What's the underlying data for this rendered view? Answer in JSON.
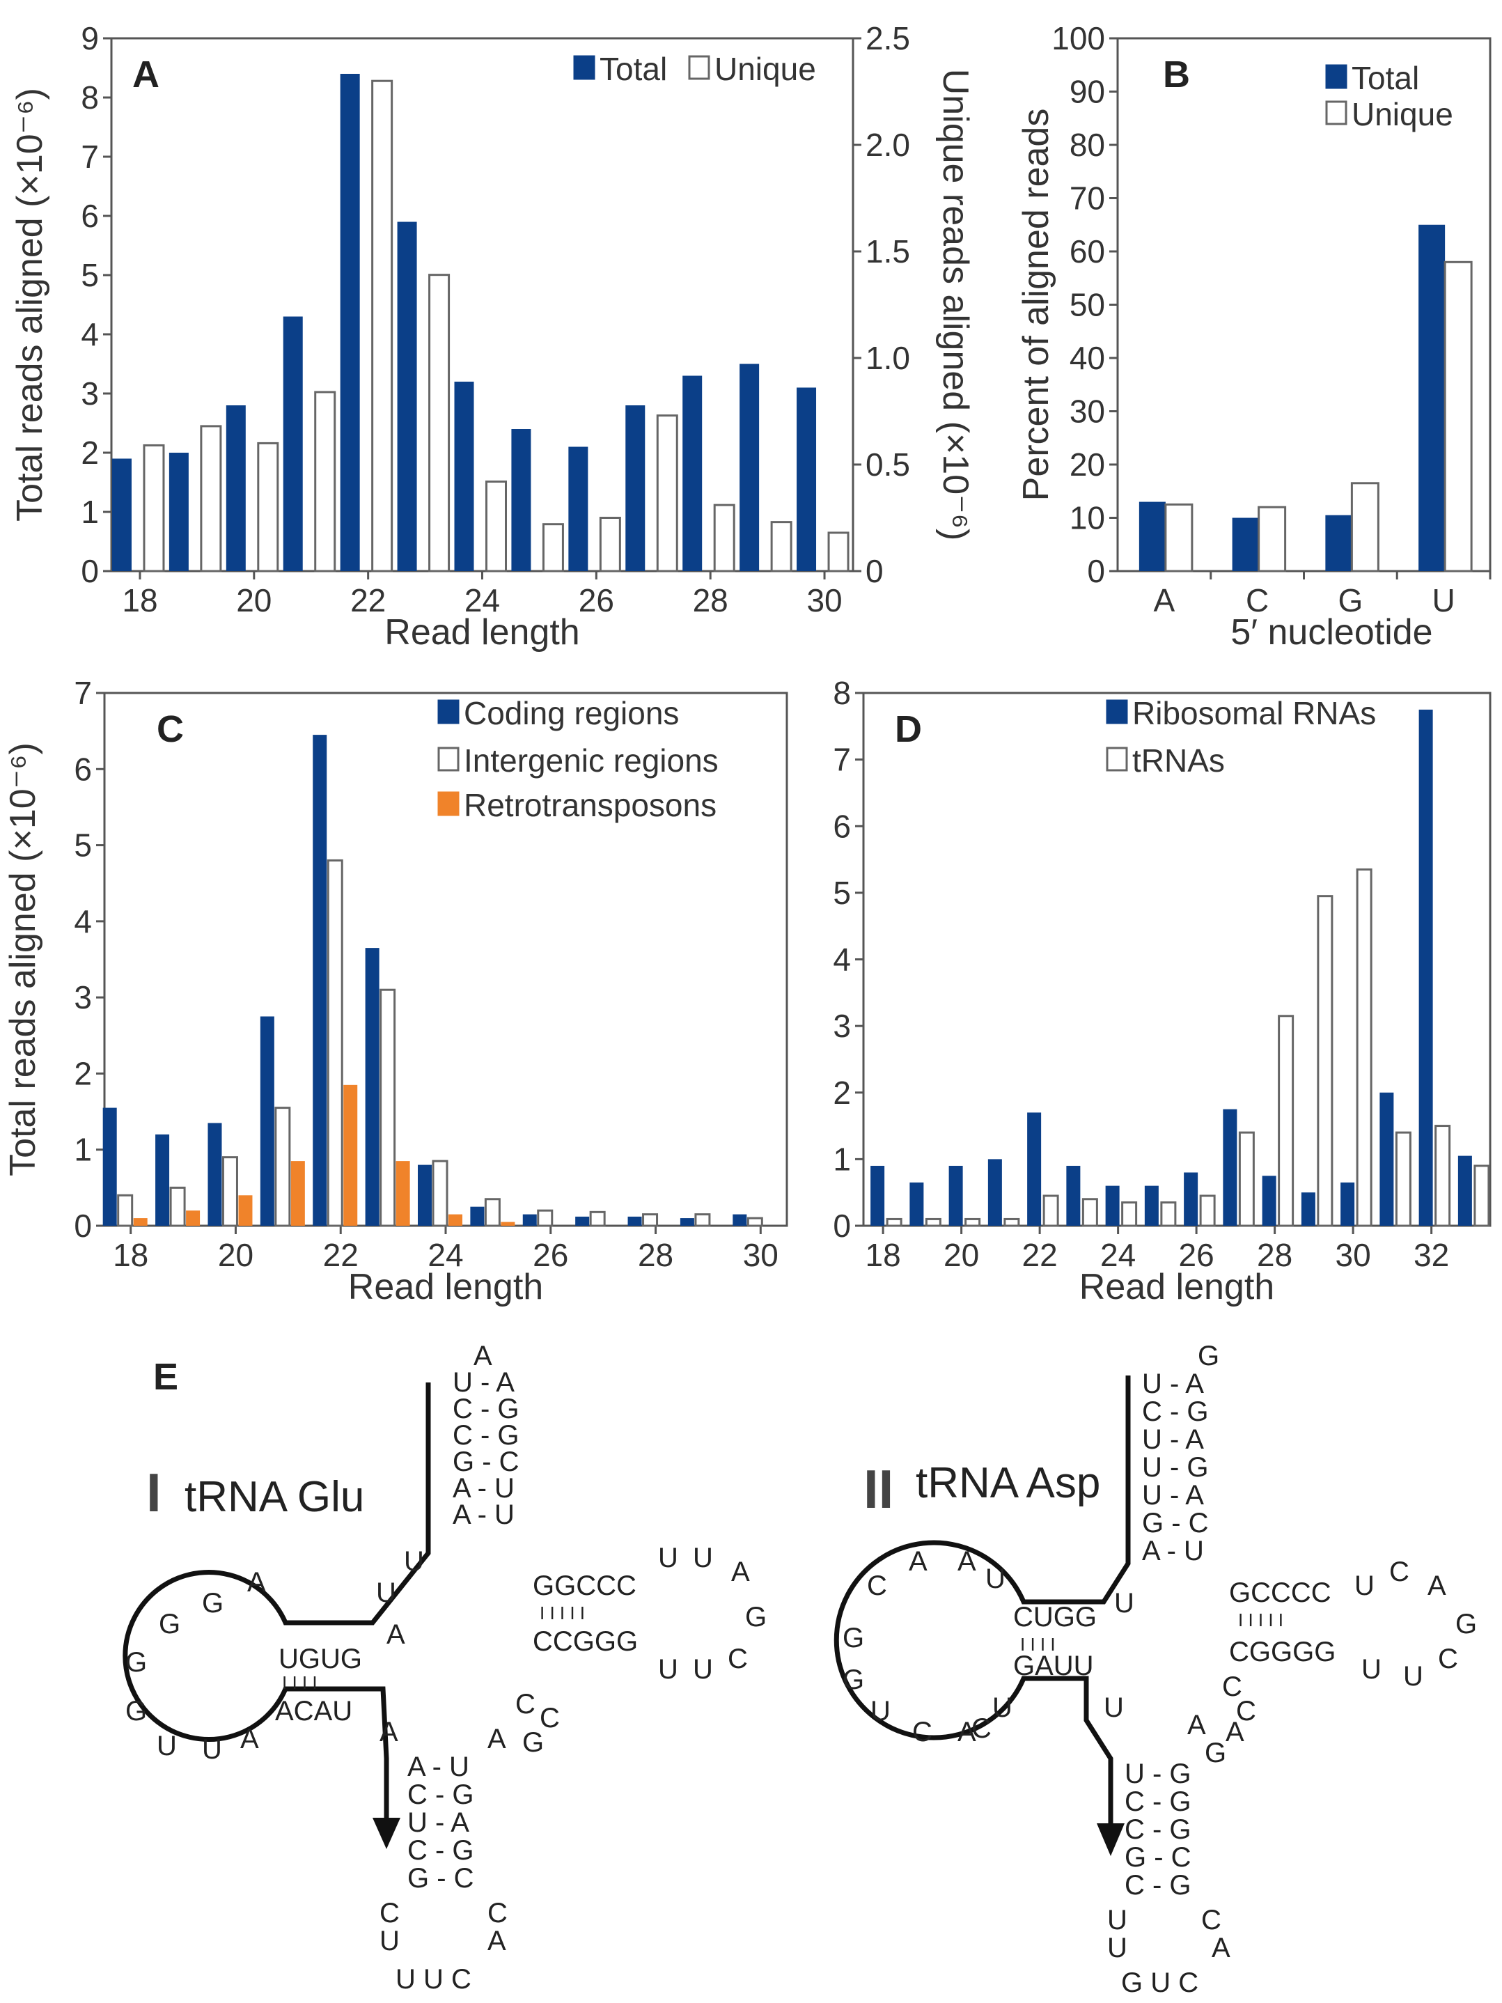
{
  "colors": {
    "total": "#0b3f88",
    "unique": "#ffffff",
    "retro": "#f0832a",
    "axis": "#555555"
  },
  "chart_data": [
    {
      "panel": "A",
      "type": "bar",
      "xlabel": "Read length",
      "ylabel": "Total reads aligned (×10⁻⁶)",
      "ylabel_right": "Unique reads aligned (×10⁻⁶)",
      "categories": [
        18,
        19,
        20,
        21,
        22,
        23,
        24,
        25,
        26,
        27,
        28,
        29,
        30
      ],
      "tick_labels": [
        "18",
        "20",
        "22",
        "24",
        "26",
        "28",
        "30"
      ],
      "ylim": [
        0,
        9
      ],
      "yticks": [
        "0",
        "1",
        "2",
        "3",
        "4",
        "5",
        "6",
        "7",
        "8",
        "9"
      ],
      "ylim_right": [
        0,
        2.5
      ],
      "yticks_right": [
        "0",
        "0.5",
        "1.0",
        "1.5",
        "2.0",
        "2.5"
      ],
      "legend": [
        "Total",
        "Unique"
      ],
      "series": [
        {
          "name": "Total",
          "axis": "left",
          "values": [
            1.9,
            2.0,
            2.8,
            4.3,
            8.4,
            5.9,
            3.2,
            2.4,
            2.1,
            2.8,
            3.3,
            3.5,
            3.1
          ]
        },
        {
          "name": "Unique",
          "axis": "right",
          "values": [
            0.59,
            0.68,
            0.6,
            0.84,
            2.3,
            1.39,
            0.42,
            0.22,
            0.25,
            0.73,
            0.31,
            0.23,
            0.18
          ]
        }
      ]
    },
    {
      "panel": "B",
      "type": "bar",
      "xlabel": "5′ nucleotide",
      "ylabel": "Percent of aligned reads",
      "categories": [
        "A",
        "C",
        "G",
        "U"
      ],
      "tick_labels": [
        "A",
        "C",
        "G",
        "U"
      ],
      "ylim": [
        0,
        100
      ],
      "yticks": [
        "0",
        "10",
        "20",
        "30",
        "40",
        "50",
        "60",
        "70",
        "80",
        "90",
        "100"
      ],
      "legend": [
        "Total",
        "Unique"
      ],
      "series": [
        {
          "name": "Total",
          "values": [
            13,
            10,
            10.5,
            65
          ]
        },
        {
          "name": "Unique",
          "values": [
            12.5,
            12,
            16.5,
            58
          ]
        }
      ]
    },
    {
      "panel": "C",
      "type": "bar",
      "xlabel": "Read length",
      "ylabel": "Total reads aligned (×10⁻⁶)",
      "categories": [
        18,
        19,
        20,
        21,
        22,
        23,
        24,
        25,
        26,
        27,
        28,
        29,
        30
      ],
      "tick_labels": [
        "18",
        "20",
        "22",
        "24",
        "26",
        "28",
        "30"
      ],
      "ylim": [
        0,
        7
      ],
      "yticks": [
        "0",
        "1",
        "2",
        "3",
        "4",
        "5",
        "6",
        "7"
      ],
      "legend": [
        "Coding regions",
        "Intergenic regions",
        "Retrotransposons"
      ],
      "series": [
        {
          "name": "Coding regions",
          "values": [
            1.55,
            1.2,
            1.35,
            2.75,
            6.45,
            3.65,
            0.8,
            0.25,
            0.15,
            0.12,
            0.12,
            0.1,
            0.15
          ]
        },
        {
          "name": "Intergenic regions",
          "values": [
            0.4,
            0.5,
            0.9,
            1.55,
            4.8,
            3.1,
            0.85,
            0.35,
            0.2,
            0.18,
            0.15,
            0.15,
            0.1
          ]
        },
        {
          "name": "Retrotransposons",
          "values": [
            0.1,
            0.2,
            0.4,
            0.85,
            1.85,
            0.85,
            0.15,
            0.05,
            0,
            0,
            0,
            0,
            0
          ]
        }
      ]
    },
    {
      "panel": "D",
      "type": "bar",
      "xlabel": "Read length",
      "ylabel": "",
      "categories": [
        18,
        19,
        20,
        21,
        22,
        23,
        24,
        25,
        26,
        27,
        28,
        29,
        30,
        31,
        32,
        33
      ],
      "tick_labels": [
        "18",
        "20",
        "22",
        "24",
        "26",
        "28",
        "30",
        "32"
      ],
      "ylim": [
        0,
        8
      ],
      "yticks": [
        "0",
        "1",
        "2",
        "3",
        "4",
        "5",
        "6",
        "7",
        "8"
      ],
      "legend": [
        "Ribosomal RNAs",
        "tRNAs"
      ],
      "series": [
        {
          "name": "Ribosomal RNAs",
          "values": [
            0.9,
            0.65,
            0.9,
            1.0,
            1.7,
            0.9,
            0.6,
            0.6,
            0.8,
            1.75,
            0.75,
            0.5,
            0.65,
            2.0,
            7.75,
            1.05
          ]
        },
        {
          "name": "tRNAs",
          "values": [
            0.1,
            0.1,
            0.1,
            0.1,
            0.45,
            0.4,
            0.35,
            0.35,
            0.45,
            1.4,
            3.15,
            4.95,
            5.35,
            1.4,
            1.5,
            0.9
          ]
        }
      ]
    }
  ],
  "panel_e": {
    "label": "E",
    "glu": {
      "numeral": "I",
      "title": "tRNA Glu",
      "stem_top": [
        "A",
        "U - A",
        "C - G",
        "C - G",
        "G - C",
        "A - U",
        "A - U"
      ],
      "stem_mid": [
        "A - U",
        "C - G",
        "U - A",
        "C - G",
        "G - C"
      ],
      "loop_bottom": [
        "C",
        "U",
        "U U C",
        "A",
        "C"
      ],
      "loop_left": [
        "G",
        "G",
        "A",
        "G",
        "G",
        "U",
        "U",
        "A"
      ],
      "anticodon_top": "UGUG",
      "anticodon_bottom": "ACAU",
      "pair_marks": "I I I I",
      "arm_top": "GGCCC",
      "arm_bottom": "CCGGG",
      "arm_marks": "I I I I I",
      "arm_loop": [
        "U",
        "U",
        "A",
        "G",
        "C",
        "U",
        "U"
      ],
      "misc": [
        "U",
        "A",
        "U",
        "A",
        "A",
        "G",
        "C",
        "C"
      ]
    },
    "asp": {
      "numeral": "II",
      "title": "tRNA Asp",
      "stem_top": [
        "G",
        "U - A",
        "C - G",
        "U - A",
        "U - G",
        "U - A",
        "G - C",
        "A - U"
      ],
      "stem_mid": [
        "U - G",
        "C - G",
        "C - G",
        "G - C",
        "C - G"
      ],
      "loop_bottom": [
        "U",
        "U",
        "G U C",
        "A",
        "C"
      ],
      "loop_left": [
        "C",
        "A",
        "A",
        "U",
        "C",
        "G",
        "G",
        "U",
        "C",
        "A"
      ],
      "anticodon_top": "CUGG",
      "anticodon_bottom": "GAUU",
      "pair_marks": "I I I I",
      "arm_top": "GCCCC",
      "arm_bottom": "CGGGG",
      "arm_marks": "I I I I I",
      "arm_loop": [
        "U",
        "C",
        "A",
        "G",
        "C",
        "U",
        "U"
      ],
      "misc": [
        "U",
        "U",
        "U",
        "A",
        "G",
        "A",
        "C",
        "C"
      ]
    }
  }
}
